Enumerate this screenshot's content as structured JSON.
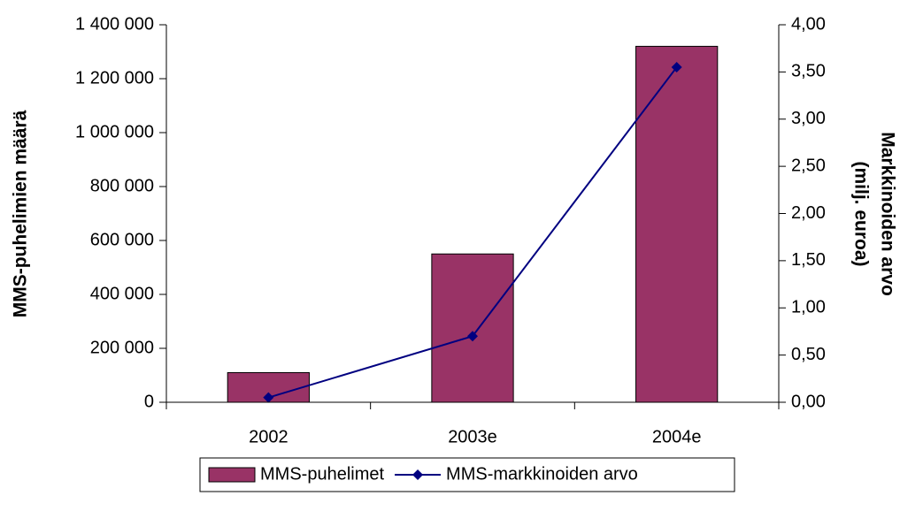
{
  "chart_data": {
    "type": "bar-line",
    "ylabel": "MMS-puhelimien määrä",
    "y2label": [
      "Markkinoiden arvo",
      "(milj. euroa)"
    ],
    "categories": [
      "2002",
      "2003e",
      "2004e"
    ],
    "series": [
      {
        "name": "MMS-puhelimet",
        "type": "bar",
        "color": "#993366",
        "values": [
          110000,
          550000,
          1320000
        ]
      },
      {
        "name": "MMS-markkinoiden arvo",
        "type": "line",
        "color": "#000080",
        "axis": "y2",
        "values": [
          0.05,
          0.7,
          3.55
        ]
      }
    ],
    "ylim": [
      0,
      1400000
    ],
    "yticks": [
      0,
      {
        "value": 200000,
        "label": "200 000"
      },
      {
        "value": 400000,
        "label": "400 000"
      },
      {
        "value": 600000,
        "label": "600 000"
      },
      {
        "value": 800000,
        "label": "800 000"
      },
      {
        "value": 1000000,
        "label": "1 000 000"
      },
      {
        "value": 1200000,
        "label": "1 200 000"
      },
      {
        "value": 1400000,
        "label": "1 400 000"
      }
    ],
    "y2lim": [
      0,
      4
    ],
    "y2ticks": [
      {
        "value": 0,
        "label": "0,00"
      },
      {
        "value": 0.5,
        "label": "0,50"
      },
      {
        "value": 1,
        "label": "1,00"
      },
      {
        "value": 1.5,
        "label": "1,50"
      },
      {
        "value": 2,
        "label": "2,00"
      },
      {
        "value": 2.5,
        "label": "2,50"
      },
      {
        "value": 3,
        "label": "3,00"
      },
      {
        "value": 3.5,
        "label": "3,50"
      },
      {
        "value": 4,
        "label": "4,00"
      }
    ],
    "legend": "bottom"
  }
}
